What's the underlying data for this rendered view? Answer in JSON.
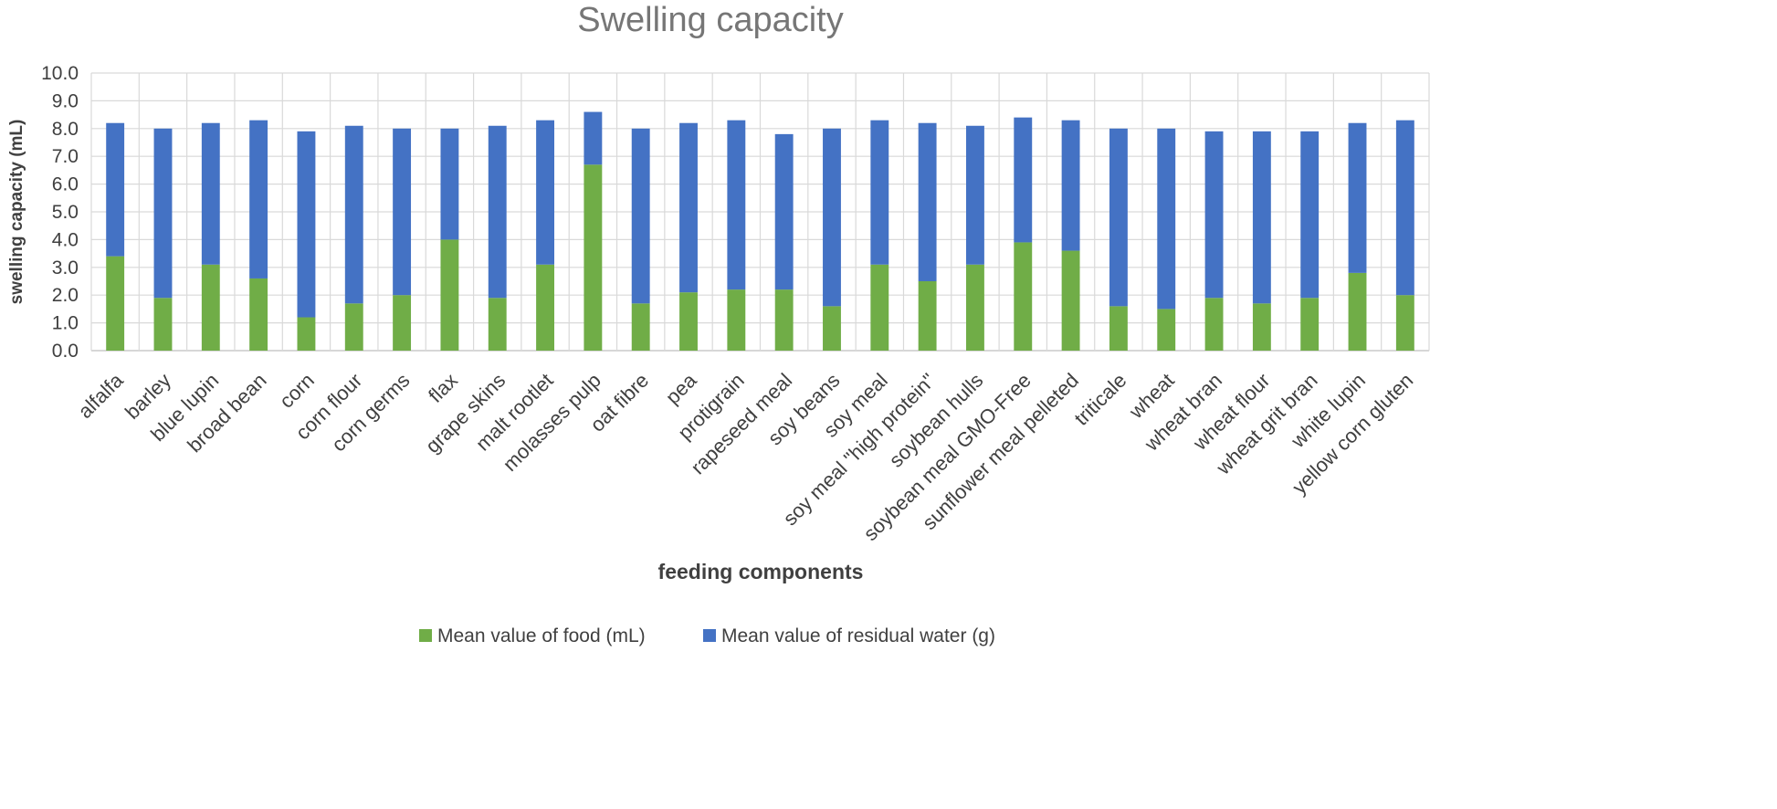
{
  "chart_data": {
    "type": "bar",
    "stacked": true,
    "title": "Swelling capacity",
    "xlabel": "feeding components",
    "ylabel": "swelling capacity  (mL)",
    "ylim": [
      0,
      10
    ],
    "ytick_step": 1,
    "yticks": [
      "0.0",
      "1.0",
      "2.0",
      "3.0",
      "4.0",
      "5.0",
      "6.0",
      "7.0",
      "8.0",
      "9.0",
      "10.0"
    ],
    "grid": true,
    "legend_position": "bottom",
    "categories": [
      "alfalfa",
      "barley",
      "blue lupin",
      "broad bean",
      "corn",
      "corn flour",
      "corn germs",
      "flax",
      "grape skins",
      "malt rootlet",
      "molasses pulp",
      "oat fibre",
      "pea",
      "protigrain",
      "rapeseed meal",
      "soy beans",
      "soy meal",
      "soy meal \"high protein\"",
      "soybean hulls",
      "soybean meal GMO-Free",
      "sunflower meal pelleted",
      "triticale",
      "wheat",
      "wheat bran",
      "wheat flour",
      "wheat grit bran",
      "white lupin",
      "yellow corn gluten"
    ],
    "series": [
      {
        "name": "Mean value of food (mL)",
        "color": "#70AD47",
        "values": [
          3.4,
          1.9,
          3.1,
          2.6,
          1.2,
          1.7,
          2.0,
          4.0,
          1.9,
          3.1,
          6.7,
          1.7,
          2.1,
          2.2,
          2.2,
          1.6,
          3.1,
          2.5,
          3.1,
          3.9,
          3.6,
          1.6,
          1.5,
          1.9,
          1.7,
          1.9,
          2.8,
          2.0
        ]
      },
      {
        "name": "Mean value of residual water (g)",
        "color": "#4472C4",
        "values": [
          4.8,
          6.1,
          5.1,
          5.7,
          6.7,
          6.4,
          6.0,
          4.0,
          6.2,
          5.2,
          1.9,
          6.3,
          6.1,
          6.1,
          5.6,
          6.4,
          5.2,
          5.7,
          5.0,
          4.5,
          4.7,
          6.4,
          6.5,
          6.0,
          6.2,
          6.0,
          5.4,
          6.3
        ]
      }
    ]
  }
}
